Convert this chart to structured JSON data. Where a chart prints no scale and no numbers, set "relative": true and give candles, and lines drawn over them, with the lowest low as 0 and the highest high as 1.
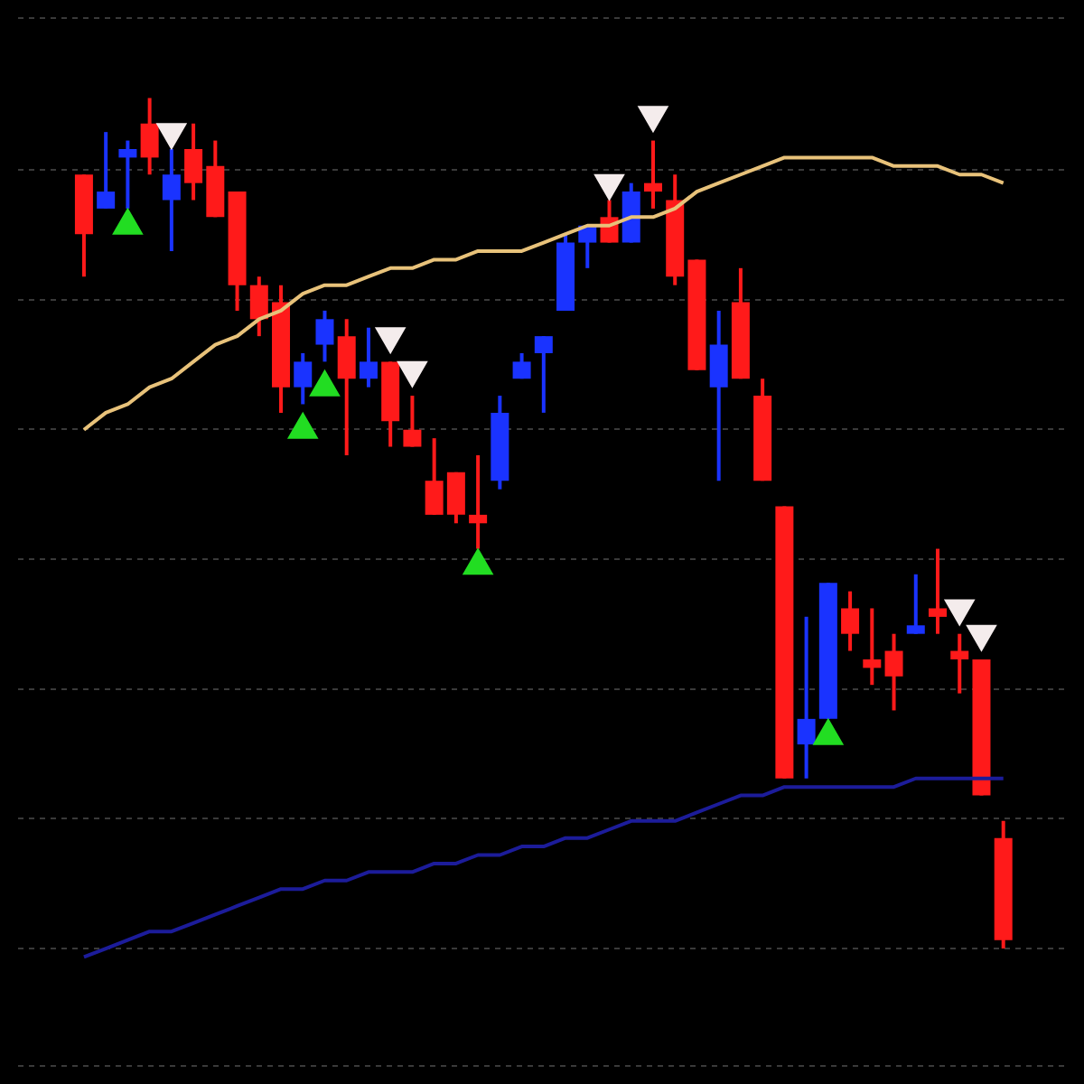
{
  "chart_data": {
    "type": "candlestick",
    "relative": true,
    "grid": "y",
    "categories": [
      null,
      null,
      null,
      null,
      null,
      null,
      null,
      null,
      null,
      null,
      null,
      null,
      null,
      null,
      null,
      null,
      null,
      null,
      null,
      null,
      null,
      null,
      null,
      null,
      null,
      null,
      null,
      null,
      null,
      null,
      null,
      null,
      null,
      null,
      null,
      null,
      null,
      null,
      null,
      null,
      null,
      null,
      null
    ],
    "ohlc": [
      [
        0.91,
        0.91,
        0.79,
        0.84
      ],
      [
        0.87,
        0.96,
        0.87,
        0.89
      ],
      [
        0.93,
        0.95,
        0.87,
        0.94
      ],
      [
        0.97,
        1.0,
        0.91,
        0.93
      ],
      [
        0.88,
        0.94,
        0.82,
        0.91
      ],
      [
        0.94,
        0.97,
        0.88,
        0.9
      ],
      [
        0.92,
        0.95,
        0.86,
        0.86
      ],
      [
        0.89,
        0.89,
        0.75,
        0.78
      ],
      [
        0.78,
        0.79,
        0.72,
        0.74
      ],
      [
        0.76,
        0.78,
        0.63,
        0.66
      ],
      [
        0.66,
        0.7,
        0.64,
        0.69
      ],
      [
        0.71,
        0.75,
        0.69,
        0.74
      ],
      [
        0.72,
        0.74,
        0.58,
        0.67
      ],
      [
        0.67,
        0.73,
        0.66,
        0.69
      ],
      [
        0.69,
        0.69,
        0.59,
        0.62
      ],
      [
        0.61,
        0.65,
        0.59,
        0.59
      ],
      [
        0.55,
        0.6,
        0.51,
        0.51
      ],
      [
        0.56,
        0.56,
        0.5,
        0.51
      ],
      [
        0.51,
        0.58,
        0.47,
        0.5
      ],
      [
        0.55,
        0.65,
        0.54,
        0.63
      ],
      [
        0.67,
        0.7,
        0.67,
        0.69
      ],
      [
        0.7,
        0.72,
        0.63,
        0.72
      ],
      [
        0.75,
        0.84,
        0.75,
        0.83
      ],
      [
        0.83,
        0.85,
        0.8,
        0.85
      ],
      [
        0.86,
        0.88,
        0.83,
        0.83
      ],
      [
        0.83,
        0.9,
        0.83,
        0.89
      ],
      [
        0.9,
        0.95,
        0.87,
        0.89
      ],
      [
        0.88,
        0.91,
        0.78,
        0.79
      ],
      [
        0.81,
        0.81,
        0.68,
        0.68
      ],
      [
        0.66,
        0.75,
        0.55,
        0.71
      ],
      [
        0.76,
        0.8,
        0.67,
        0.67
      ],
      [
        0.65,
        0.67,
        0.55,
        0.55
      ],
      [
        0.52,
        0.52,
        0.2,
        0.2
      ],
      [
        0.24,
        0.39,
        0.2,
        0.27
      ],
      [
        0.27,
        0.43,
        0.27,
        0.43
      ],
      [
        0.4,
        0.42,
        0.35,
        0.37
      ],
      [
        0.34,
        0.4,
        0.31,
        0.33
      ],
      [
        0.35,
        0.37,
        0.28,
        0.32
      ],
      [
        0.37,
        0.44,
        0.37,
        0.38
      ],
      [
        0.4,
        0.47,
        0.37,
        0.39
      ],
      [
        0.35,
        0.37,
        0.3,
        0.34
      ],
      [
        0.34,
        0.34,
        0.18,
        0.18
      ],
      [
        0.13,
        0.15,
        0.0,
        0.01
      ]
    ],
    "colors": [
      "#ff1a1a",
      "#1a33ff",
      "#1a33ff",
      "#ff1a1a",
      "#1a33ff",
      "#ff1a1a",
      "#ff1a1a",
      "#ff1a1a",
      "#ff1a1a",
      "#ff1a1a",
      "#1a33ff",
      "#1a33ff",
      "#ff1a1a",
      "#1a33ff",
      "#ff1a1a",
      "#ff1a1a",
      "#ff1a1a",
      "#ff1a1a",
      "#ff1a1a",
      "#1a33ff",
      "#1a33ff",
      "#1a33ff",
      "#1a33ff",
      "#1a33ff",
      "#ff1a1a",
      "#1a33ff",
      "#ff1a1a",
      "#ff1a1a",
      "#ff1a1a",
      "#1a33ff",
      "#ff1a1a",
      "#ff1a1a",
      "#ff1a1a",
      "#1a33ff",
      "#1a33ff",
      "#ff1a1a",
      "#ff1a1a",
      "#ff1a1a",
      "#1a33ff",
      "#ff1a1a",
      "#ff1a1a",
      "#ff1a1a",
      "#ff1a1a"
    ],
    "series": [
      {
        "type": "line",
        "color": "#e8c27a",
        "values": [
          0.61,
          0.63,
          0.64,
          0.66,
          0.67,
          0.69,
          0.71,
          0.72,
          0.74,
          0.75,
          0.77,
          0.78,
          0.78,
          0.79,
          0.8,
          0.8,
          0.81,
          0.81,
          0.82,
          0.82,
          0.82,
          0.83,
          0.84,
          0.85,
          0.85,
          0.86,
          0.86,
          0.87,
          0.89,
          0.9,
          0.91,
          0.92,
          0.93,
          0.93,
          0.93,
          0.93,
          0.93,
          0.92,
          0.92,
          0.92,
          0.91,
          0.91,
          0.9
        ]
      },
      {
        "type": "line",
        "color": "#1c1c9a",
        "values": [
          -0.01,
          0.0,
          0.01,
          0.02,
          0.02,
          0.03,
          0.04,
          0.05,
          0.06,
          0.07,
          0.07,
          0.08,
          0.08,
          0.09,
          0.09,
          0.09,
          0.1,
          0.1,
          0.11,
          0.11,
          0.12,
          0.12,
          0.13,
          0.13,
          0.14,
          0.15,
          0.15,
          0.15,
          0.16,
          0.17,
          0.18,
          0.18,
          0.19,
          0.19,
          0.19,
          0.19,
          0.19,
          0.19,
          0.2,
          0.2,
          0.2,
          0.2,
          0.2
        ]
      },
      {
        "type": "scatter",
        "marker": "triangle",
        "color": "#22dd22",
        "values": [
          null,
          null,
          0.85,
          null,
          null,
          null,
          null,
          null,
          null,
          null,
          0.61,
          0.66,
          null,
          null,
          null,
          null,
          null,
          null,
          0.45,
          null,
          null,
          null,
          null,
          null,
          null,
          null,
          null,
          null,
          null,
          null,
          null,
          null,
          null,
          null,
          0.25,
          null,
          null,
          null,
          null,
          null,
          null,
          null,
          null
        ]
      },
      {
        "type": "scatter",
        "marker": "triangle-down",
        "color": "#f4ecec",
        "values": [
          null,
          null,
          null,
          null,
          0.96,
          null,
          null,
          null,
          null,
          null,
          null,
          null,
          null,
          null,
          0.72,
          0.68,
          null,
          null,
          null,
          null,
          null,
          null,
          null,
          null,
          0.9,
          null,
          0.98,
          null,
          null,
          null,
          null,
          null,
          null,
          null,
          null,
          null,
          null,
          null,
          null,
          null,
          0.4,
          0.37,
          null
        ]
      }
    ]
  }
}
